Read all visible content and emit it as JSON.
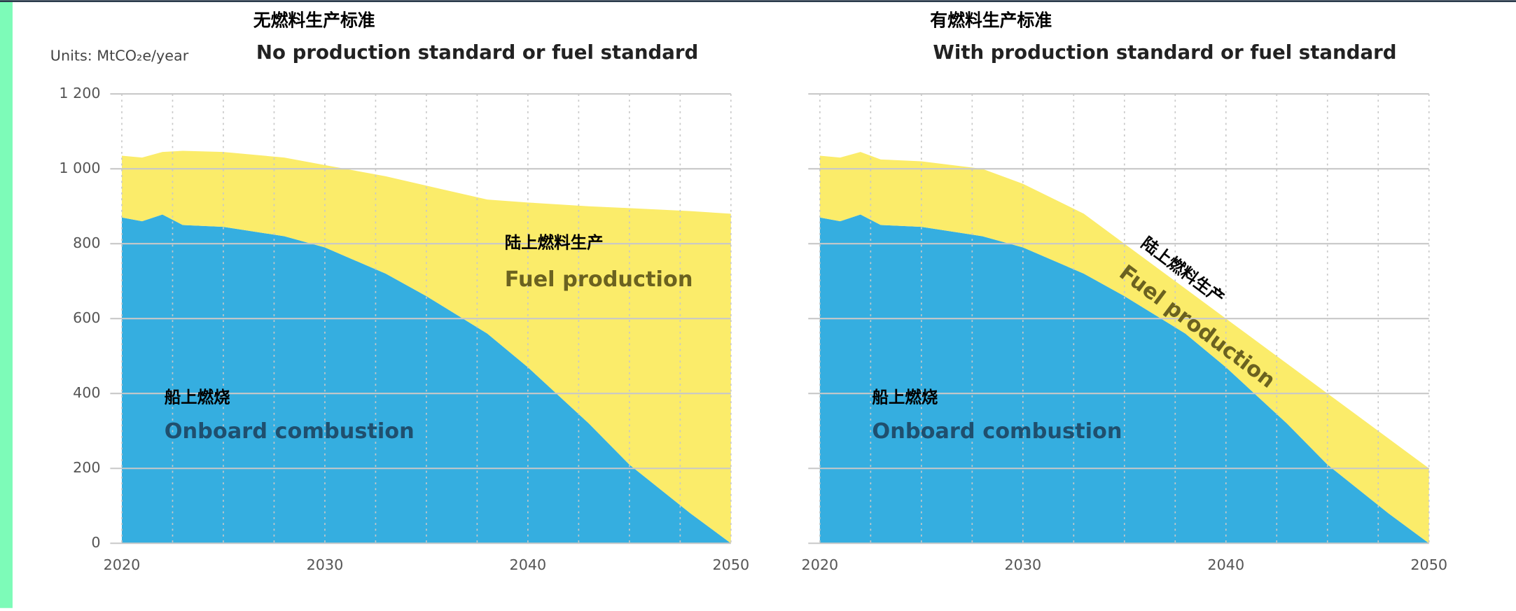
{
  "chart_data": [
    {
      "type": "stacked_area",
      "title": "无燃料生产标准",
      "subtitle": "No production standard or fuel standard",
      "units": "Units: MtCO₂e/year",
      "x": [
        2020,
        2021,
        2022,
        2023,
        2025,
        2028,
        2030,
        2033,
        2035,
        2038,
        2040,
        2043,
        2045,
        2048,
        2050
      ],
      "series": [
        {
          "name": "Onboard combustion",
          "color": "#35aee0",
          "values": [
            870,
            860,
            878,
            850,
            845,
            820,
            790,
            720,
            660,
            560,
            470,
            320,
            210,
            80,
            0
          ]
        },
        {
          "name": "Fuel production",
          "color": "#fbec6a",
          "values": [
            165,
            170,
            167,
            198,
            200,
            210,
            220,
            260,
            295,
            358,
            440,
            580,
            685,
            807,
            880
          ]
        }
      ],
      "annotations": [
        "陆上燃料生产",
        "Fuel production",
        "船上燃烧",
        "Onboard combustion"
      ],
      "xlim": [
        2020,
        2050
      ],
      "xticks": [
        2020,
        2030,
        2040,
        2050
      ],
      "ylim": [
        0,
        1200
      ],
      "yticks": [
        0,
        200,
        400,
        600,
        800,
        {
          "value": 1000,
          "label": "1 000"
        },
        {
          "value": 1200,
          "label": "1 200"
        }
      ],
      "grid": true
    },
    {
      "type": "stacked_area",
      "title": "有燃料生产标准",
      "subtitle": "With production standard or fuel standard",
      "x": [
        2020,
        2021,
        2022,
        2023,
        2025,
        2028,
        2030,
        2033,
        2035,
        2038,
        2040,
        2043,
        2045,
        2048,
        2050
      ],
      "series": [
        {
          "name": "Onboard combustion",
          "color": "#35aee0",
          "values": [
            870,
            860,
            878,
            850,
            845,
            820,
            790,
            720,
            660,
            560,
            470,
            320,
            210,
            80,
            0
          ]
        },
        {
          "name": "Fuel production",
          "color": "#fbec6a",
          "values": [
            165,
            170,
            167,
            175,
            175,
            180,
            170,
            160,
            140,
            120,
            130,
            160,
            190,
            200,
            200
          ]
        }
      ],
      "annotations": [
        "陆上燃料生产",
        "Fuel production",
        "船上燃烧",
        "Onboard combustion"
      ],
      "xlim": [
        2020,
        2050
      ],
      "xticks": [
        2020,
        2030,
        2040,
        2050
      ],
      "ylim": [
        0,
        1200
      ],
      "yticks": [
        0,
        200,
        400,
        600,
        800,
        {
          "value": 1000,
          "label": "1 000"
        },
        {
          "value": 1200,
          "label": "1 200"
        }
      ],
      "grid": true
    }
  ]
}
